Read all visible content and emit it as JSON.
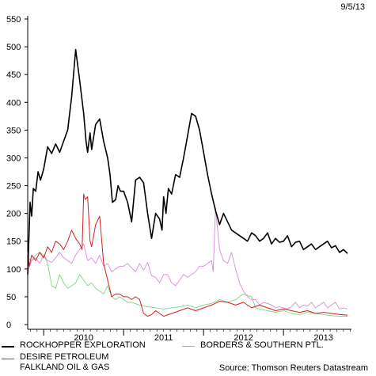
{
  "date_stamp": "9/5/13",
  "source": "Source: Thomson Reuters Datastream",
  "legend": [
    {
      "label": "ROCKHOPPER EXPLORATION",
      "color": "#000000"
    },
    {
      "label": "BORDERS & SOUTHERN PTL.",
      "color": "#d98ad9"
    },
    {
      "label": "DESIRE PETROLEUM",
      "color": "#d22020"
    },
    {
      "label": "FALKLAND OIL & GAS",
      "color": "#7fd67f"
    }
  ],
  "chart_data": {
    "type": "line",
    "title": "",
    "xlabel": "",
    "ylabel": "",
    "xlim": [
      2009.3,
      2013.35
    ],
    "ylim": [
      0,
      550
    ],
    "yticks": [
      0,
      50,
      100,
      150,
      200,
      250,
      300,
      350,
      400,
      450,
      500,
      550
    ],
    "xticks": [
      {
        "label": "2010",
        "x": 2010.0
      },
      {
        "label": "2011",
        "x": 2011.0
      },
      {
        "label": "2012",
        "x": 2012.0
      },
      {
        "label": "2013",
        "x": 2013.0
      }
    ],
    "year_boundaries": [
      2009.5,
      2010.5,
      2011.5,
      2012.5
    ],
    "series": [
      {
        "name": "ROCKHOPPER EXPLORATION",
        "color": "#000000",
        "width": 1.6,
        "x": [
          2009.3,
          2009.33,
          2009.35,
          2009.37,
          2009.4,
          2009.43,
          2009.46,
          2009.5,
          2009.55,
          2009.6,
          2009.65,
          2009.7,
          2009.75,
          2009.8,
          2009.85,
          2009.9,
          2009.95,
          2010.0,
          2010.03,
          2010.05,
          2010.08,
          2010.1,
          2010.15,
          2010.2,
          2010.25,
          2010.3,
          2010.33,
          2010.36,
          2010.4,
          2010.43,
          2010.46,
          2010.5,
          2010.55,
          2010.6,
          2010.65,
          2010.7,
          2010.75,
          2010.8,
          2010.85,
          2010.9,
          2010.95,
          2010.98,
          2011.0,
          2011.03,
          2011.06,
          2011.1,
          2011.15,
          2011.2,
          2011.25,
          2011.3,
          2011.35,
          2011.4,
          2011.45,
          2011.5,
          2011.55,
          2011.6,
          2011.65,
          2011.7,
          2011.75,
          2011.8,
          2011.85,
          2011.9,
          2011.95,
          2012.0,
          2012.05,
          2012.1,
          2012.15,
          2012.2,
          2012.25,
          2012.3,
          2012.35,
          2012.4,
          2012.45,
          2012.5,
          2012.55,
          2012.6,
          2012.65,
          2012.7,
          2012.75,
          2012.8,
          2012.85,
          2012.9,
          2012.95,
          2013.0,
          2013.05,
          2013.1,
          2013.15,
          2013.2,
          2013.25,
          2013.3
        ],
        "y": [
          90,
          220,
          195,
          245,
          240,
          275,
          260,
          280,
          320,
          308,
          325,
          310,
          330,
          350,
          410,
          495,
          440,
          380,
          330,
          310,
          345,
          315,
          360,
          370,
          330,
          300,
          270,
          220,
          225,
          250,
          240,
          240,
          220,
          185,
          260,
          265,
          255,
          200,
          155,
          200,
          190,
          170,
          230,
          200,
          245,
          235,
          270,
          265,
          300,
          340,
          380,
          375,
          350,
          310,
          270,
          235,
          205,
          180,
          200,
          185,
          170,
          165,
          160,
          155,
          150,
          165,
          160,
          150,
          155,
          165,
          145,
          155,
          148,
          150,
          160,
          140,
          148,
          150,
          135,
          140,
          145,
          135,
          140,
          145,
          150,
          138,
          142,
          130,
          135,
          128
        ]
      },
      {
        "name": "BORDERS & SOUTHERN PTL.",
        "color": "#d98ad9",
        "width": 0.9,
        "x": [
          2009.3,
          2009.35,
          2009.4,
          2009.45,
          2009.5,
          2009.55,
          2009.6,
          2009.65,
          2009.7,
          2009.75,
          2009.8,
          2009.85,
          2009.9,
          2009.95,
          2010.0,
          2010.05,
          2010.1,
          2010.15,
          2010.2,
          2010.25,
          2010.3,
          2010.35,
          2010.4,
          2010.45,
          2010.5,
          2010.55,
          2010.6,
          2010.65,
          2010.7,
          2010.75,
          2010.8,
          2010.85,
          2010.9,
          2010.95,
          2011.0,
          2011.05,
          2011.1,
          2011.15,
          2011.2,
          2011.25,
          2011.3,
          2011.35,
          2011.4,
          2011.45,
          2011.5,
          2011.55,
          2011.6,
          2011.62,
          2011.65,
          2011.7,
          2011.75,
          2011.8,
          2011.85,
          2011.9,
          2011.95,
          2012.0,
          2012.05,
          2012.1,
          2012.15,
          2012.2,
          2012.25,
          2012.3,
          2012.35,
          2012.4,
          2012.45,
          2012.5,
          2012.55,
          2012.6,
          2012.65,
          2012.7,
          2012.75,
          2012.8,
          2012.85,
          2012.9,
          2012.95,
          2013.0,
          2013.05,
          2013.1,
          2013.15,
          2013.2,
          2013.25,
          2013.3
        ],
        "y": [
          95,
          115,
          120,
          110,
          125,
          115,
          112,
          120,
          130,
          120,
          115,
          110,
          125,
          135,
          145,
          115,
          120,
          110,
          125,
          105,
          110,
          95,
          100,
          105,
          105,
          110,
          102,
          95,
          110,
          98,
          112,
          88,
          85,
          75,
          90,
          90,
          75,
          70,
          80,
          90,
          85,
          90,
          95,
          105,
          105,
          110,
          115,
          95,
          210,
          135,
          115,
          110,
          130,
          100,
          75,
          60,
          50,
          45,
          45,
          35,
          40,
          38,
          35,
          30,
          32,
          30,
          28,
          32,
          40,
          30,
          35,
          33,
          40,
          30,
          35,
          40,
          30,
          35,
          40,
          28,
          30,
          28
        ]
      },
      {
        "name": "DESIRE PETROLEUM",
        "color": "#d22020",
        "width": 1.0,
        "x": [
          2009.3,
          2009.32,
          2009.35,
          2009.4,
          2009.45,
          2009.5,
          2009.55,
          2009.6,
          2009.65,
          2009.7,
          2009.75,
          2009.8,
          2009.85,
          2009.9,
          2009.95,
          2009.98,
          2010.0,
          2010.02,
          2010.05,
          2010.08,
          2010.1,
          2010.15,
          2010.2,
          2010.25,
          2010.3,
          2010.35,
          2010.4,
          2010.45,
          2010.5,
          2010.55,
          2010.6,
          2010.65,
          2010.7,
          2010.75,
          2010.8,
          2010.85,
          2010.9,
          2010.95,
          2011.0,
          2011.1,
          2011.2,
          2011.3,
          2011.4,
          2011.5,
          2011.6,
          2011.7,
          2011.8,
          2011.9,
          2012.0,
          2012.1,
          2012.2,
          2012.3,
          2012.4,
          2012.5,
          2012.6,
          2012.7,
          2012.8,
          2012.9,
          2013.0,
          2013.1,
          2013.2,
          2013.3
        ],
        "y": [
          130,
          105,
          125,
          115,
          130,
          120,
          140,
          130,
          150,
          145,
          135,
          150,
          170,
          155,
          145,
          135,
          235,
          225,
          230,
          150,
          140,
          180,
          195,
          110,
          80,
          50,
          55,
          55,
          50,
          50,
          45,
          50,
          45,
          20,
          15,
          18,
          25,
          20,
          15,
          20,
          25,
          30,
          25,
          30,
          35,
          42,
          40,
          35,
          40,
          30,
          35,
          30,
          25,
          28,
          25,
          22,
          25,
          20,
          22,
          20,
          18,
          17
        ]
      },
      {
        "name": "FALKLAND OIL & GAS",
        "color": "#7fd67f",
        "width": 0.9,
        "x": [
          2009.3,
          2009.35,
          2009.4,
          2009.45,
          2009.5,
          2009.55,
          2009.6,
          2009.65,
          2009.7,
          2009.75,
          2009.8,
          2009.85,
          2009.9,
          2009.95,
          2010.0,
          2010.05,
          2010.1,
          2010.15,
          2010.2,
          2010.25,
          2010.3,
          2010.35,
          2010.4,
          2010.45,
          2010.5,
          2010.55,
          2010.6,
          2010.7,
          2010.8,
          2010.9,
          2011.0,
          2011.1,
          2011.2,
          2011.3,
          2011.4,
          2011.5,
          2011.6,
          2011.7,
          2011.8,
          2011.9,
          2012.0,
          2012.1,
          2012.15,
          2012.2,
          2012.3,
          2012.4,
          2012.5,
          2012.6,
          2012.7,
          2012.8,
          2012.9,
          2013.0,
          2013.1,
          2013.2,
          2013.3
        ],
        "y": [
          120,
          115,
          125,
          130,
          125,
          110,
          70,
          65,
          90,
          75,
          65,
          70,
          75,
          90,
          80,
          70,
          75,
          65,
          60,
          55,
          70,
          50,
          45,
          50,
          45,
          40,
          40,
          35,
          32,
          30,
          28,
          30,
          32,
          35,
          30,
          35,
          38,
          45,
          40,
          45,
          55,
          50,
          30,
          28,
          25,
          22,
          25,
          20,
          18,
          22,
          20,
          18,
          16,
          15,
          15
        ]
      }
    ]
  }
}
